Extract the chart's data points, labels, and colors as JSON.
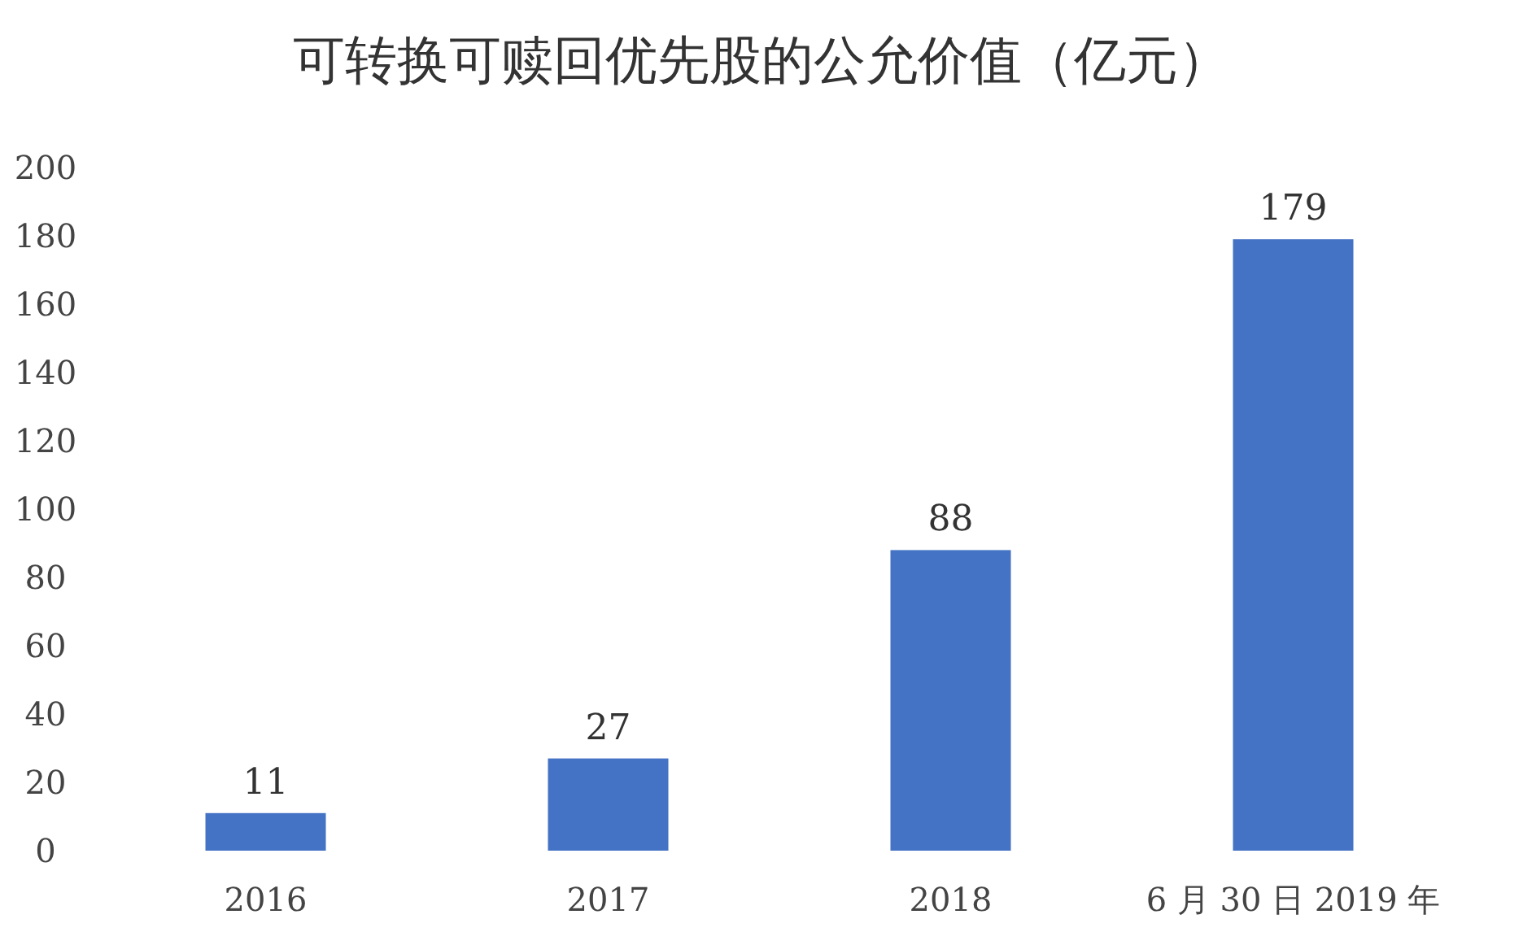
{
  "chart_data": {
    "type": "bar",
    "title": "可转换可赎回优先股的公允价值（亿元）",
    "categories": [
      "2016",
      "2017",
      "2018",
      "6 月 30 日 2019 年"
    ],
    "values": [
      11,
      27,
      88,
      179
    ],
    "color": "#4472c4",
    "ylim": [
      0,
      200
    ],
    "yticks": [
      0,
      20,
      40,
      60,
      80,
      100,
      120,
      140,
      160,
      180,
      200
    ],
    "data_labels": true
  }
}
